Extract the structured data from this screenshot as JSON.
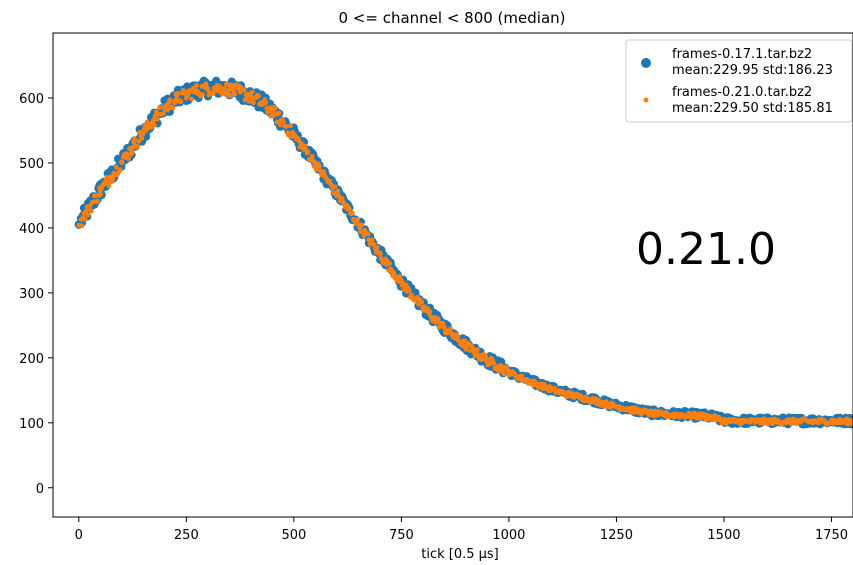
{
  "chart_data": {
    "type": "scatter",
    "title": "0 <= channel < 800 (median)",
    "xlabel": "tick [0.5 μs]",
    "ylabel": "",
    "xlim": [
      -60,
      1800
    ],
    "ylim": [
      -45,
      700
    ],
    "xticks": [
      0,
      250,
      500,
      750,
      1000,
      1250,
      1500,
      1750
    ],
    "yticks": [
      0,
      100,
      200,
      300,
      400,
      500,
      600
    ],
    "legend_position": "top-right",
    "annotation": "0.21.0",
    "colors": {
      "series1": "#1f77b4",
      "series2": "#ff7f0e"
    },
    "x": [
      0,
      25,
      50,
      75,
      100,
      125,
      150,
      175,
      200,
      225,
      250,
      275,
      300,
      325,
      350,
      375,
      400,
      425,
      450,
      475,
      500,
      525,
      550,
      575,
      600,
      625,
      650,
      675,
      700,
      725,
      750,
      775,
      800,
      825,
      850,
      875,
      900,
      925,
      950,
      975,
      1000,
      1025,
      1050,
      1075,
      1100,
      1125,
      1150,
      1175,
      1200,
      1225,
      1250,
      1275,
      1300,
      1325,
      1350,
      1375,
      1400,
      1425,
      1450,
      1475,
      1500,
      1525,
      1550,
      1575,
      1600,
      1625,
      1650,
      1675,
      1700,
      1725,
      1750,
      1775,
      1800
    ],
    "series": [
      {
        "name": "frames-0.17.1.tar.bz2",
        "stats": "mean:229.95 std:186.23",
        "values": [
          405,
          432,
          458,
          480,
          502,
          525,
          548,
          568,
          585,
          598,
          606,
          612,
          615,
          616,
          614,
          610,
          603,
          593,
          580,
          563,
          543,
          522,
          500,
          477,
          454,
          430,
          407,
          383,
          360,
          338,
          317,
          297,
          279,
          262,
          247,
          233,
          220,
          208,
          197,
          188,
          179,
          171,
          164,
          158,
          152,
          147,
          143,
          139,
          135,
          130,
          126,
          123,
          119,
          116,
          114,
          113,
          113,
          112,
          111,
          109,
          104,
          103,
          103,
          103,
          103,
          103,
          103,
          103,
          103,
          103,
          103,
          103,
          103
        ]
      },
      {
        "name": "frames-0.21.0.tar.bz2",
        "stats": "mean:229.50 std:185.81",
        "values": [
          404,
          431,
          457,
          479,
          501,
          524,
          547,
          567,
          584,
          597,
          605,
          611,
          614,
          615,
          613,
          609,
          602,
          592,
          579,
          562,
          542,
          521,
          499,
          476,
          453,
          429,
          406,
          382,
          359,
          337,
          316,
          296,
          278,
          261,
          246,
          232,
          219,
          207,
          196,
          187,
          178,
          170,
          163,
          157,
          151,
          146,
          142,
          138,
          134,
          129,
          125,
          122,
          118,
          115,
          113,
          112,
          112,
          111,
          110,
          108,
          103,
          102,
          102,
          102,
          102,
          102,
          102,
          102,
          102,
          102,
          102,
          102,
          102
        ]
      }
    ]
  }
}
